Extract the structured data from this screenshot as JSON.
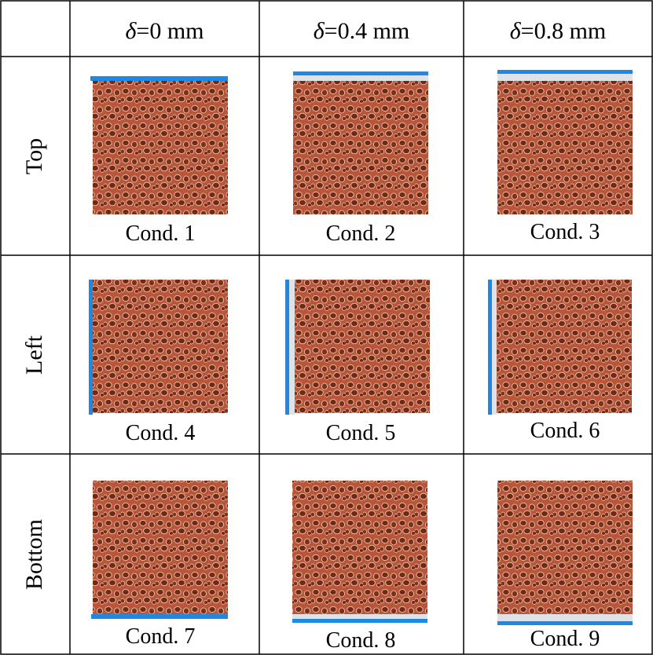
{
  "columns": [
    {
      "symbol": "δ",
      "value": "=0 mm"
    },
    {
      "symbol": "δ",
      "value": "=0.4 mm"
    },
    {
      "symbol": "δ",
      "value": "=0.8 mm"
    }
  ],
  "rows": [
    {
      "label": "Top",
      "electrode_side": "top",
      "conds": [
        "Cond. 1",
        "Cond. 2",
        "Cond. 3"
      ]
    },
    {
      "label": "Left",
      "electrode_side": "left",
      "conds": [
        "Cond. 4",
        "Cond. 5",
        "Cond. 6"
      ]
    },
    {
      "label": "Bottom",
      "electrode_side": "bottom",
      "conds": [
        "Cond. 7",
        "Cond. 8",
        "Cond. 9"
      ]
    }
  ],
  "colors": {
    "foam_base": "#b8553a",
    "foam_pore": "#6e2a17",
    "foam_strut": "#e6b79e",
    "electrode": "#1e88e5",
    "gap": "#dfe3e8",
    "grid_line": "#000000"
  }
}
